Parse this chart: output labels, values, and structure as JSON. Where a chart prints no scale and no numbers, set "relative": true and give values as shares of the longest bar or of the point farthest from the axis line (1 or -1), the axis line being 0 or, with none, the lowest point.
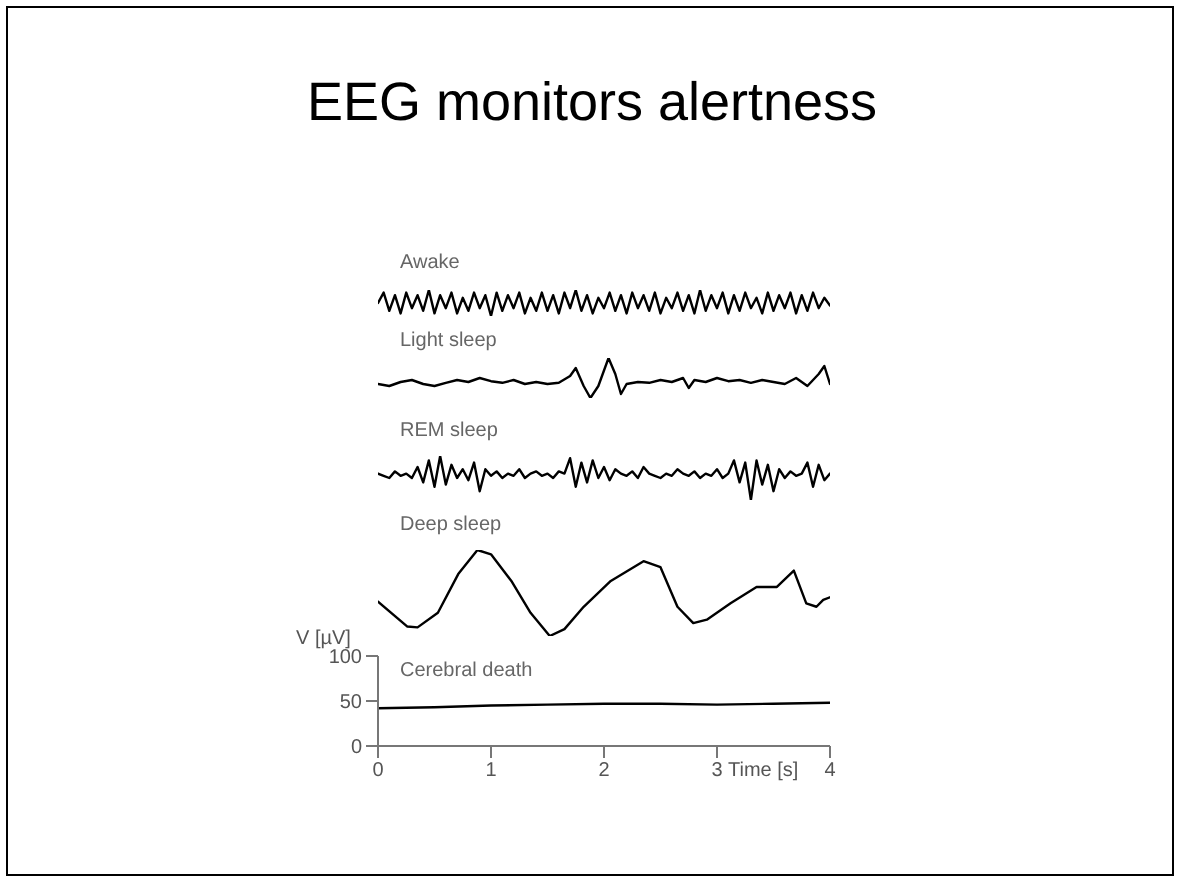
{
  "chart_data": [
    {
      "type": "line",
      "title": "EEG monitors alertness",
      "subtitle": "Awake",
      "relative": true,
      "tick_labels": false,
      "xlim": [
        0,
        4
      ],
      "marker": "none",
      "x": [
        0,
        0.05,
        0.1,
        0.15,
        0.2,
        0.25,
        0.3,
        0.35,
        0.4,
        0.45,
        0.5,
        0.55,
        0.6,
        0.65,
        0.7,
        0.75,
        0.8,
        0.85,
        0.9,
        0.95,
        1,
        1.05,
        1.1,
        1.15,
        1.2,
        1.25,
        1.3,
        1.35,
        1.4,
        1.45,
        1.5,
        1.55,
        1.6,
        1.65,
        1.7,
        1.75,
        1.8,
        1.85,
        1.9,
        1.95,
        2,
        2.05,
        2.1,
        2.15,
        2.2,
        2.25,
        2.3,
        2.35,
        2.4,
        2.45,
        2.5,
        2.55,
        2.6,
        2.65,
        2.7,
        2.75,
        2.8,
        2.85,
        2.9,
        2.95,
        3,
        3.05,
        3.1,
        3.15,
        3.2,
        3.25,
        3.3,
        3.35,
        3.4,
        3.45,
        3.5,
        3.55,
        3.6,
        3.65,
        3.7,
        3.75,
        3.8,
        3.85,
        3.9,
        3.95,
        4
      ],
      "series": [
        {
          "color": "#000000",
          "values": [
            0.5,
            0.9,
            0.2,
            0.8,
            0.1,
            0.9,
            0.3,
            0.8,
            0.2,
            1,
            0.1,
            0.8,
            0.3,
            0.9,
            0.1,
            0.7,
            0.2,
            0.9,
            0.3,
            0.8,
            0,
            0.9,
            0.2,
            0.8,
            0.3,
            0.9,
            0.1,
            0.7,
            0.2,
            0.9,
            0.2,
            0.8,
            0.1,
            0.9,
            0.3,
            1,
            0.2,
            0.8,
            0.1,
            0.7,
            0.3,
            0.9,
            0.2,
            0.8,
            0.1,
            0.9,
            0.3,
            0.8,
            0.2,
            0.9,
            0.1,
            0.7,
            0.3,
            0.9,
            0.2,
            0.8,
            0.1,
            1,
            0.2,
            0.8,
            0.3,
            0.9,
            0.1,
            0.8,
            0.2,
            0.9,
            0.3,
            0.7,
            0.1,
            0.9,
            0.2,
            0.8,
            0.3,
            0.9,
            0.1,
            0.8,
            0.2,
            0.9,
            0.3,
            0.7,
            0.4
          ]
        }
      ]
    },
    {
      "type": "line",
      "subtitle": "Light sleep",
      "relative": true,
      "tick_labels": false,
      "xlim": [
        0,
        4
      ],
      "marker": "none",
      "x": [
        0,
        0.1,
        0.2,
        0.3,
        0.4,
        0.5,
        0.6,
        0.7,
        0.8,
        0.9,
        1,
        1.1,
        1.2,
        1.3,
        1.4,
        1.5,
        1.6,
        1.7,
        1.75,
        1.82,
        1.88,
        1.95,
        2.04,
        2.1,
        2.15,
        2.2,
        2.3,
        2.4,
        2.5,
        2.6,
        2.7,
        2.75,
        2.8,
        2.9,
        3,
        3.1,
        3.2,
        3.3,
        3.4,
        3.5,
        3.6,
        3.7,
        3.8,
        3.9,
        3.95,
        4
      ],
      "series": [
        {
          "color": "#000000",
          "values": [
            0.35,
            0.3,
            0.4,
            0.45,
            0.35,
            0.3,
            0.38,
            0.45,
            0.4,
            0.5,
            0.42,
            0.38,
            0.45,
            0.35,
            0.4,
            0.35,
            0.38,
            0.55,
            0.75,
            0.3,
            0,
            0.3,
            1,
            0.6,
            0.1,
            0.35,
            0.4,
            0.38,
            0.45,
            0.4,
            0.5,
            0.25,
            0.45,
            0.4,
            0.5,
            0.42,
            0.45,
            0.38,
            0.45,
            0.4,
            0.35,
            0.5,
            0.3,
            0.6,
            0.8,
            0.35
          ]
        }
      ]
    },
    {
      "type": "line",
      "subtitle": "REM sleep",
      "relative": true,
      "tick_labels": false,
      "xlim": [
        0,
        4
      ],
      "marker": "none",
      "x": [
        0,
        0.05,
        0.1,
        0.15,
        0.2,
        0.25,
        0.3,
        0.35,
        0.4,
        0.45,
        0.5,
        0.55,
        0.6,
        0.65,
        0.7,
        0.75,
        0.8,
        0.85,
        0.9,
        0.95,
        1,
        1.05,
        1.1,
        1.15,
        1.2,
        1.25,
        1.3,
        1.35,
        1.4,
        1.45,
        1.5,
        1.55,
        1.6,
        1.65,
        1.7,
        1.75,
        1.8,
        1.85,
        1.9,
        1.95,
        2,
        2.05,
        2.1,
        2.15,
        2.2,
        2.25,
        2.3,
        2.35,
        2.4,
        2.45,
        2.5,
        2.55,
        2.6,
        2.65,
        2.7,
        2.75,
        2.8,
        2.85,
        2.9,
        2.95,
        3,
        3.05,
        3.1,
        3.15,
        3.2,
        3.25,
        3.3,
        3.35,
        3.4,
        3.45,
        3.5,
        3.55,
        3.6,
        3.65,
        3.7,
        3.75,
        3.8,
        3.85,
        3.9,
        3.95,
        4
      ],
      "series": [
        {
          "color": "#000000",
          "values": [
            0.6,
            0.55,
            0.5,
            0.65,
            0.55,
            0.6,
            0.5,
            0.75,
            0.4,
            0.9,
            0.3,
            1,
            0.35,
            0.8,
            0.5,
            0.7,
            0.45,
            0.85,
            0.2,
            0.7,
            0.55,
            0.65,
            0.5,
            0.6,
            0.55,
            0.7,
            0.5,
            0.6,
            0.65,
            0.55,
            0.6,
            0.5,
            0.65,
            0.6,
            0.95,
            0.3,
            0.85,
            0.4,
            0.9,
            0.5,
            0.75,
            0.45,
            0.7,
            0.6,
            0.55,
            0.65,
            0.5,
            0.75,
            0.6,
            0.55,
            0.5,
            0.6,
            0.55,
            0.7,
            0.6,
            0.55,
            0.65,
            0.5,
            0.6,
            0.55,
            0.7,
            0.5,
            0.6,
            0.9,
            0.4,
            0.85,
            0,
            0.9,
            0.35,
            0.8,
            0.2,
            0.7,
            0.5,
            0.65,
            0.55,
            0.6,
            0.85,
            0.3,
            0.8,
            0.45,
            0.6
          ]
        }
      ]
    },
    {
      "type": "line",
      "subtitle": "Deep sleep",
      "relative": true,
      "tick_labels": false,
      "xlim": [
        0,
        4
      ],
      "marker": "none",
      "x": [
        0,
        0.26,
        0.35,
        0.53,
        0.71,
        0.88,
        1,
        1.18,
        1.35,
        1.52,
        1.65,
        1.82,
        2.06,
        2.35,
        2.5,
        2.65,
        2.79,
        2.91,
        3.12,
        3.35,
        3.53,
        3.68,
        3.79,
        3.88,
        3.94,
        4
      ],
      "series": [
        {
          "color": "#000000",
          "values": [
            0.4,
            0.11,
            0.1,
            0.27,
            0.72,
            1,
            0.95,
            0.64,
            0.27,
            0,
            0.08,
            0.34,
            0.64,
            0.87,
            0.8,
            0.34,
            0.15,
            0.19,
            0.38,
            0.57,
            0.57,
            0.76,
            0.38,
            0.34,
            0.42,
            0.45
          ]
        }
      ]
    },
    {
      "type": "line",
      "subtitle": "Cerebral death",
      "xlabel": "Time [s]",
      "ylabel": "V [µV]",
      "xlim": [
        0,
        4
      ],
      "xticks": [
        0,
        1,
        2,
        3,
        4
      ],
      "ylim": [
        0,
        100
      ],
      "yticks": [
        0,
        50,
        100
      ],
      "marker": "none",
      "x": [
        0,
        0.5,
        1,
        1.5,
        2,
        2.5,
        3,
        3.5,
        4
      ],
      "series": [
        {
          "color": "#000000",
          "values": [
            42,
            43,
            45,
            46,
            47,
            47,
            46,
            47,
            48
          ]
        }
      ]
    }
  ]
}
